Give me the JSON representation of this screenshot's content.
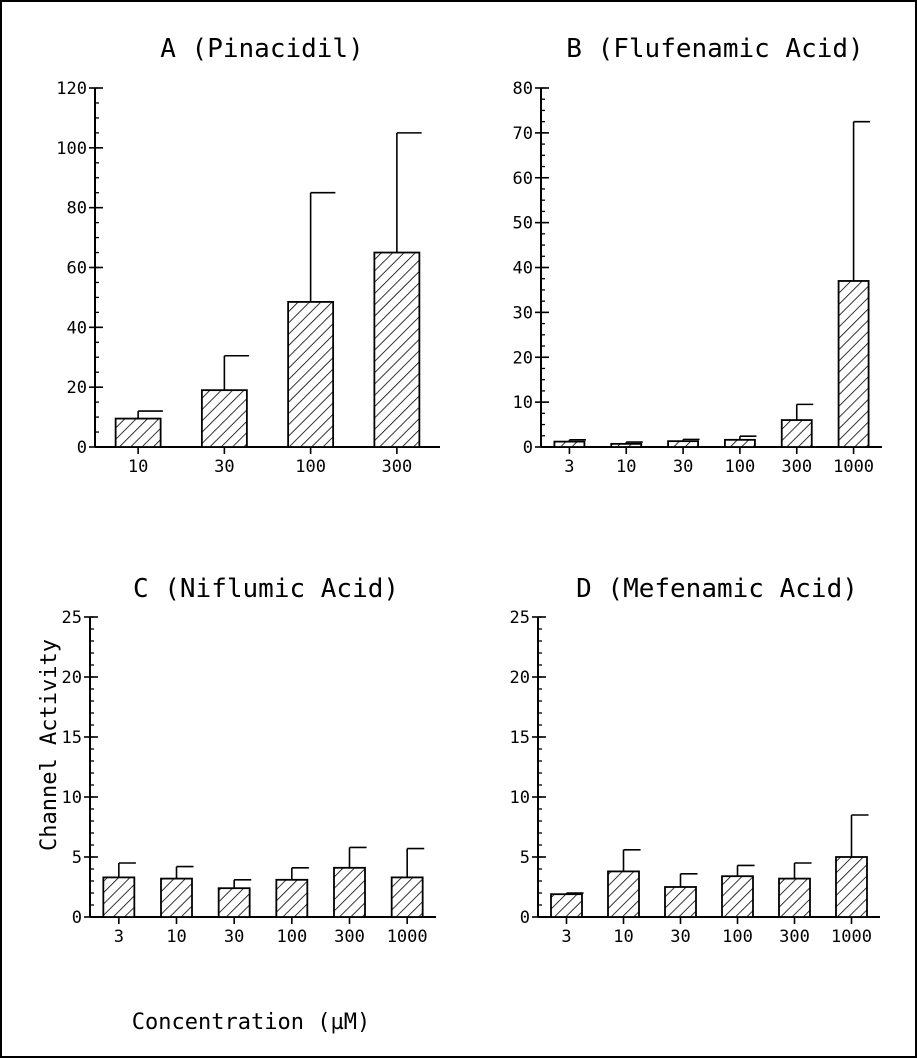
{
  "figure": {
    "ylabel_shared": "Channel Activity",
    "xlabel_shared": "Concentration (µM)"
  },
  "chart_data": [
    {
      "type": "bar",
      "title": "A   (Pinacidil)",
      "categories": [
        "10",
        "30",
        "100",
        "300"
      ],
      "values": [
        9.5,
        19,
        48.5,
        65
      ],
      "errors": [
        2.5,
        11.5,
        36.5,
        40
      ],
      "ylim": [
        0,
        120
      ],
      "yticks": [
        0,
        20,
        40,
        60,
        80,
        100,
        120
      ],
      "yminor": 5
    },
    {
      "type": "bar",
      "title": "B   (Flufenamic Acid)",
      "categories": [
        "3",
        "10",
        "30",
        "100",
        "300",
        "1000"
      ],
      "values": [
        1.2,
        0.7,
        1.3,
        1.6,
        6,
        37
      ],
      "errors": [
        0.4,
        0.4,
        0.4,
        0.8,
        3.5,
        35.5
      ],
      "ylim": [
        0,
        80
      ],
      "yticks": [
        0,
        10,
        20,
        30,
        40,
        50,
        60,
        70,
        80
      ],
      "yminor": 2.5
    },
    {
      "type": "bar",
      "title": "C   (Niflumic Acid)",
      "categories": [
        "3",
        "10",
        "30",
        "100",
        "300",
        "1000"
      ],
      "values": [
        3.3,
        3.2,
        2.4,
        3.1,
        4.1,
        3.3
      ],
      "errors": [
        1.2,
        1.0,
        0.7,
        1.0,
        1.7,
        2.4
      ],
      "ylim": [
        0,
        25
      ],
      "yticks": [
        0,
        5,
        10,
        15,
        20,
        25
      ],
      "yminor": 1
    },
    {
      "type": "bar",
      "title": "D   (Mefenamic Acid)",
      "categories": [
        "3",
        "10",
        "30",
        "100",
        "300",
        "1000"
      ],
      "values": [
        1.9,
        3.8,
        2.5,
        3.4,
        3.2,
        5.0
      ],
      "errors": [
        0.1,
        1.8,
        1.1,
        0.9,
        1.3,
        3.5
      ],
      "ylim": [
        0,
        25
      ],
      "yticks": [
        0,
        5,
        10,
        15,
        20,
        25
      ],
      "yminor": 1
    }
  ]
}
